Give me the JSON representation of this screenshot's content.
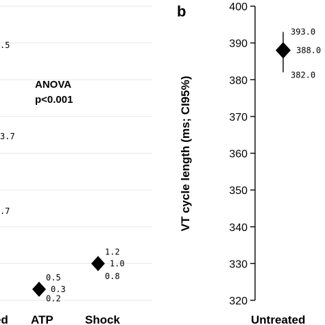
{
  "chart_data": [
    {
      "type": "scatter",
      "title": "",
      "annotation_lines": [
        "ANOVA",
        "p<0.001"
      ],
      "categories": [
        "Untreated",
        "ATP",
        "Shock"
      ],
      "visible_category_labels": [
        "ed",
        "ATP",
        "Shock"
      ],
      "partial_labels": [
        ".5",
        "3.7",
        ".7"
      ],
      "points": [
        {
          "category": "ATP",
          "value": 0.3,
          "lower": 0.2,
          "upper": 0.5,
          "value_label": "0.3",
          "lower_label": "0.2",
          "upper_label": "0.5"
        },
        {
          "category": "Shock",
          "value": 1.0,
          "lower": 0.8,
          "upper": 1.2,
          "value_label": "1.0",
          "lower_label": "0.8",
          "upper_label": "1.2"
        }
      ]
    },
    {
      "type": "scatter",
      "panel_label": "b",
      "ylabel": "VT cycle length (ms; CI95%)",
      "ylim": [
        320,
        400
      ],
      "yticks": [
        "320",
        "330",
        "340",
        "350",
        "360",
        "370",
        "380",
        "390",
        "400"
      ],
      "categories": [
        "Untreated"
      ],
      "points": [
        {
          "category": "Untreated",
          "value": 388.0,
          "lower": 382.0,
          "upper": 393.0,
          "value_label": "388.0",
          "lower_label": "382.0",
          "upper_label": "393.0"
        }
      ]
    }
  ]
}
